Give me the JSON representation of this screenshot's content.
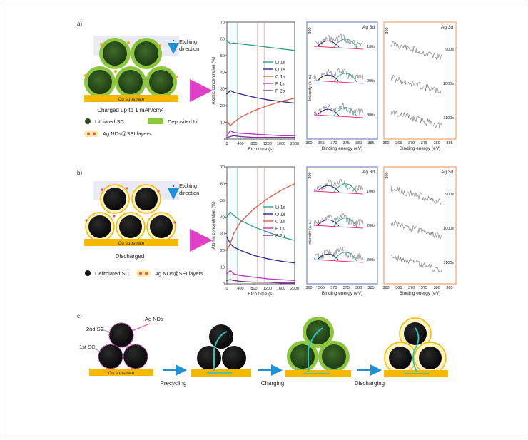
{
  "panel_a": {
    "label": "a)",
    "etching": [
      "Etching",
      "direction"
    ],
    "substrate": "Cu substrate",
    "caption": "Charged up to 1 mAh/cm²",
    "legend": [
      "Lithiated SC",
      "Deposited Li",
      "Ag NDs@SEI layers"
    ]
  },
  "panel_b": {
    "label": "b)",
    "etching": [
      "Etching",
      "direction"
    ],
    "substrate": "Cu substrate",
    "caption": "Discharged",
    "legend": [
      "Delithiated SC",
      "Ag NDs@SEI layers"
    ]
  },
  "panel_c": {
    "label": "c)",
    "labels": [
      "2nd SC",
      "1st SC",
      "Ag NDs"
    ],
    "substrate": "Cu substrate",
    "steps": [
      "Precycling",
      "Charging",
      "Discharging"
    ]
  },
  "xps_a": {
    "element": "Ag 3d",
    "tick300": "300",
    "times": [
      "100s",
      "200s",
      "300s"
    ],
    "times2": [
      "900s",
      "1000s",
      "1100s"
    ]
  },
  "xps_b": {
    "element": "Ag 3d",
    "tick300": "300",
    "times": [
      "100s",
      "200s",
      "300s"
    ],
    "times2": [
      "900s",
      "1000s",
      "1100s"
    ]
  },
  "xps_axis": {
    "xlabel": "Binding energy (eV)",
    "ylabel": "Intensity (a. u.)",
    "ticks": [
      "360",
      "365",
      "370",
      "375",
      "380",
      "385"
    ]
  },
  "chart_data": [
    {
      "type": "line",
      "xlabel": "Etch time (s)",
      "ylabel": "Atomic concentration (%)",
      "xlim": [
        0,
        2000
      ],
      "ylim": [
        0,
        70
      ],
      "xticks": [
        0,
        400,
        800,
        1200,
        1600,
        2000
      ],
      "yticks": [
        0,
        10,
        20,
        30,
        40,
        50,
        60,
        70
      ],
      "series": [
        {
          "name": "Li 1s",
          "color": "#2e9e8c",
          "x": [
            0,
            100,
            200,
            400,
            800,
            1200,
            1600,
            2000
          ],
          "values": [
            59,
            57,
            57.5,
            57,
            56,
            55,
            54,
            53
          ]
        },
        {
          "name": "O 1s",
          "color": "#2b2b8f",
          "x": [
            0,
            100,
            200,
            400,
            800,
            1200,
            1600,
            2000
          ],
          "values": [
            27,
            29,
            28,
            27,
            25,
            23.5,
            22.5,
            21.5
          ]
        },
        {
          "name": "C 1s",
          "color": "#e05a4a",
          "x": [
            0,
            100,
            200,
            400,
            800,
            1200,
            1600,
            2000
          ],
          "values": [
            11,
            8,
            10,
            13,
            17,
            20,
            22.5,
            24.5
          ]
        },
        {
          "name": "F 1s",
          "color": "#c030c0",
          "x": [
            0,
            100,
            200,
            400,
            800,
            1200,
            1600,
            2000
          ],
          "values": [
            2,
            5,
            4,
            3.5,
            3,
            2.5,
            2,
            2
          ]
        },
        {
          "name": "P 2p",
          "color": "#7a2f9a",
          "x": [
            0,
            100,
            200,
            400,
            800,
            1200,
            1600,
            2000
          ],
          "values": [
            1,
            1.5,
            2,
            1.5,
            1,
            1,
            1,
            1
          ]
        }
      ]
    },
    {
      "type": "line",
      "xlabel": "Etch time (s)",
      "ylabel": "Atomic concentration (%)",
      "xlim": [
        0,
        2000
      ],
      "ylim": [
        0,
        70
      ],
      "xticks": [
        0,
        400,
        800,
        1200,
        1600,
        2000
      ],
      "yticks": [
        0,
        10,
        20,
        30,
        40,
        50,
        60,
        70
      ],
      "series": [
        {
          "name": "Li 1s",
          "color": "#2e9e8c",
          "x": [
            0,
            100,
            200,
            400,
            800,
            1200,
            1600,
            2000
          ],
          "values": [
            40,
            43,
            41,
            38,
            34,
            31,
            28,
            26
          ]
        },
        {
          "name": "O 1s",
          "color": "#2b2b8f",
          "x": [
            0,
            100,
            200,
            400,
            800,
            1200,
            1600,
            2000
          ],
          "values": [
            28,
            24,
            22,
            20,
            17,
            15,
            13.5,
            12.5
          ]
        },
        {
          "name": "C 1s",
          "color": "#e05a4a",
          "x": [
            0,
            100,
            200,
            400,
            800,
            1200,
            1600,
            2000
          ],
          "values": [
            20,
            24,
            30,
            37,
            45,
            51,
            56,
            60
          ]
        },
        {
          "name": "F 1s",
          "color": "#c030c0",
          "x": [
            0,
            100,
            200,
            400,
            800,
            1200,
            1600,
            2000
          ],
          "values": [
            6,
            8,
            6,
            5,
            4,
            3,
            2.5,
            2
          ]
        },
        {
          "name": "P 2p",
          "color": "#7a2f9a",
          "x": [
            0,
            100,
            200,
            400,
            800,
            1200,
            1600,
            2000
          ],
          "values": [
            2,
            2.5,
            2,
            1.5,
            1,
            1,
            0.5,
            0.5
          ]
        }
      ]
    }
  ]
}
